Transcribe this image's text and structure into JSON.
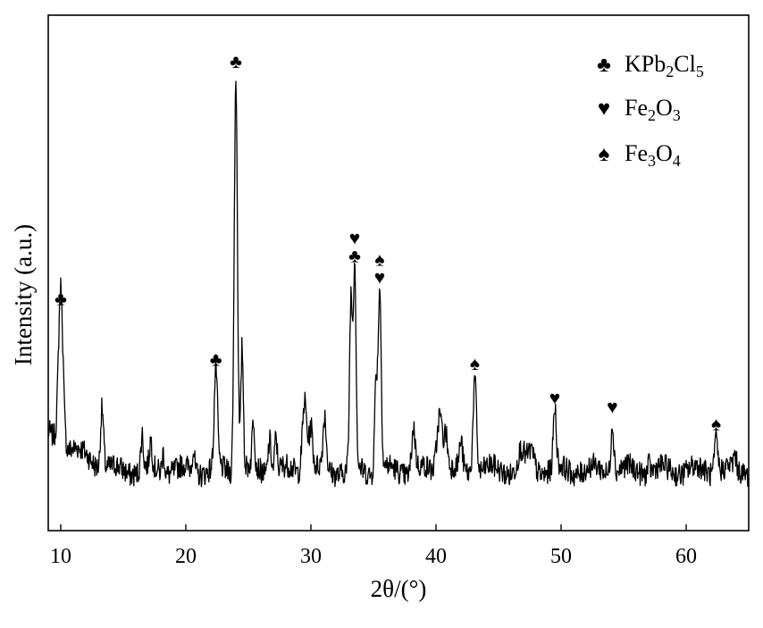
{
  "chart_data": {
    "type": "line",
    "title": "",
    "xlabel": "2θ/(°)",
    "ylabel": "Intensity (a.u.)",
    "xlim": [
      9,
      65
    ],
    "ylim": [
      0,
      100
    ],
    "x_ticks": [
      10,
      20,
      30,
      40,
      50,
      60
    ],
    "y_ticks_shown": false,
    "grid": false,
    "legend_position": "top-right",
    "legend": [
      {
        "symbol": "club",
        "glyph": "♣",
        "phase": "KPb",
        "s1": "2",
        "mid": "Cl",
        "s2": "5"
      },
      {
        "symbol": "heart",
        "glyph": "♥",
        "phase": "Fe",
        "s1": "2",
        "mid": "O",
        "s2": "3"
      },
      {
        "symbol": "spade",
        "glyph": "♠",
        "phase": "Fe",
        "s1": "3",
        "mid": "O",
        "s2": "4"
      }
    ],
    "peaks": [
      {
        "x": 10.0,
        "y": 45,
        "w": 0.18
      },
      {
        "x": 13.3,
        "y": 22,
        "w": 0.12
      },
      {
        "x": 16.5,
        "y": 16,
        "w": 0.1
      },
      {
        "x": 17.2,
        "y": 14,
        "w": 0.1
      },
      {
        "x": 18.2,
        "y": 13,
        "w": 0.1
      },
      {
        "x": 20.6,
        "y": 13,
        "w": 0.1
      },
      {
        "x": 22.4,
        "y": 31,
        "w": 0.13
      },
      {
        "x": 24.0,
        "y": 100,
        "w": 0.13
      },
      {
        "x": 24.5,
        "y": 37,
        "w": 0.1
      },
      {
        "x": 25.4,
        "y": 19,
        "w": 0.1
      },
      {
        "x": 26.7,
        "y": 16,
        "w": 0.12
      },
      {
        "x": 27.2,
        "y": 16,
        "w": 0.1
      },
      {
        "x": 29.5,
        "y": 25,
        "w": 0.18
      },
      {
        "x": 30.0,
        "y": 18,
        "w": 0.14
      },
      {
        "x": 31.1,
        "y": 20,
        "w": 0.13
      },
      {
        "x": 33.2,
        "y": 47,
        "w": 0.11
      },
      {
        "x": 33.5,
        "y": 55,
        "w": 0.11
      },
      {
        "x": 35.2,
        "y": 29,
        "w": 0.11
      },
      {
        "x": 35.5,
        "y": 50,
        "w": 0.12
      },
      {
        "x": 38.2,
        "y": 18,
        "w": 0.14
      },
      {
        "x": 40.3,
        "y": 22,
        "w": 0.22
      },
      {
        "x": 40.8,
        "y": 16,
        "w": 0.14
      },
      {
        "x": 42.0,
        "y": 14,
        "w": 0.12
      },
      {
        "x": 43.1,
        "y": 30,
        "w": 0.14
      },
      {
        "x": 46.8,
        "y": 12,
        "w": 0.25
      },
      {
        "x": 47.6,
        "y": 12,
        "w": 0.25
      },
      {
        "x": 49.5,
        "y": 22,
        "w": 0.12
      },
      {
        "x": 54.1,
        "y": 20,
        "w": 0.12
      },
      {
        "x": 57.0,
        "y": 10,
        "w": 0.12
      },
      {
        "x": 62.4,
        "y": 16,
        "w": 0.13
      },
      {
        "x": 63.9,
        "y": 11,
        "w": 0.1
      }
    ],
    "markers": [
      {
        "x": 10.0,
        "y": 45,
        "glyphs": [
          "♣"
        ]
      },
      {
        "x": 22.4,
        "y": 31,
        "glyphs": [
          "♣"
        ]
      },
      {
        "x": 24.0,
        "y": 100,
        "glyphs": [
          "♣"
        ]
      },
      {
        "x": 33.5,
        "y": 55,
        "glyphs": [
          "♣",
          "♥"
        ]
      },
      {
        "x": 35.5,
        "y": 50,
        "glyphs": [
          "♥",
          "♠"
        ]
      },
      {
        "x": 43.1,
        "y": 30,
        "glyphs": [
          "♠"
        ]
      },
      {
        "x": 49.5,
        "y": 22,
        "glyphs": [
          "♥"
        ]
      },
      {
        "x": 54.1,
        "y": 20,
        "glyphs": [
          "♥"
        ]
      },
      {
        "x": 62.4,
        "y": 16,
        "glyphs": [
          "♠"
        ]
      }
    ]
  }
}
